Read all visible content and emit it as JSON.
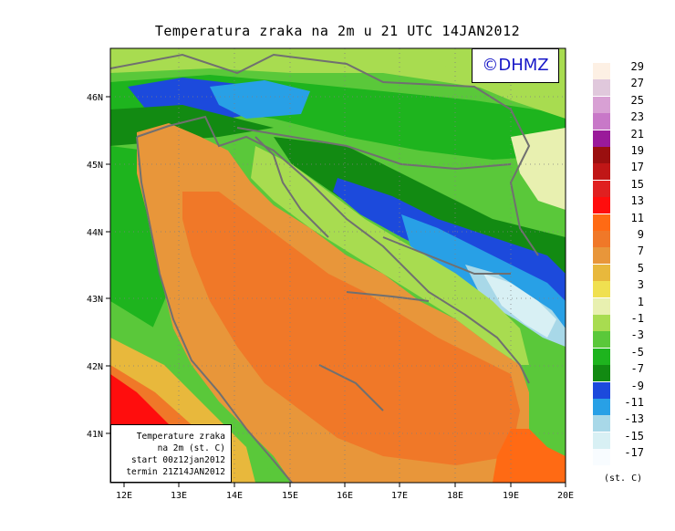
{
  "title": "Temperatura zraka na 2m u 21 UTC 14JAN2012",
  "watermark": "©DHMZ",
  "info_box": {
    "line1": "Temperature zraka",
    "line2": "na 2m (st. C)",
    "line3": "start 00z12jan2012",
    "line4": "termin 21Z14JAN2012"
  },
  "axes": {
    "lon_labels": [
      "12E",
      "13E",
      "14E",
      "15E",
      "16E",
      "17E",
      "18E",
      "19E",
      "20E"
    ],
    "lat_labels": [
      "46N",
      "45N",
      "44N",
      "43N",
      "42N",
      "41N"
    ]
  },
  "legend": {
    "units": "(st. C)",
    "items": [
      {
        "label": "29",
        "color": "#fdf0e4"
      },
      {
        "label": "27",
        "color": "#e0c8dc"
      },
      {
        "label": "25",
        "color": "#d8a0d4"
      },
      {
        "label": "23",
        "color": "#c878c8"
      },
      {
        "label": "21",
        "color": "#9a1a9a"
      },
      {
        "label": "19",
        "color": "#9a0f0f"
      },
      {
        "label": "17",
        "color": "#c01616"
      },
      {
        "label": "15",
        "color": "#e02020"
      },
      {
        "label": "13",
        "color": "#ff0d0d"
      },
      {
        "label": "11",
        "color": "#ff6a14"
      },
      {
        "label": "9",
        "color": "#f07828"
      },
      {
        "label": "7",
        "color": "#e8963a"
      },
      {
        "label": "5",
        "color": "#e8b83c"
      },
      {
        "label": "3",
        "color": "#f0e050"
      },
      {
        "label": "1",
        "color": "#e8f0b0"
      },
      {
        "label": "-1",
        "color": "#a8dc50"
      },
      {
        "label": "-3",
        "color": "#5ac83a"
      },
      {
        "label": "-5",
        "color": "#1eb41e"
      },
      {
        "label": "-7",
        "color": "#128a12"
      },
      {
        "label": "-9",
        "color": "#1c4adc"
      },
      {
        "label": "-11",
        "color": "#28a0e6"
      },
      {
        "label": "-13",
        "color": "#a8d8e8"
      },
      {
        "label": "-15",
        "color": "#d8f0f4"
      },
      {
        "label": "-17",
        "color": "#f8fcff"
      }
    ]
  }
}
